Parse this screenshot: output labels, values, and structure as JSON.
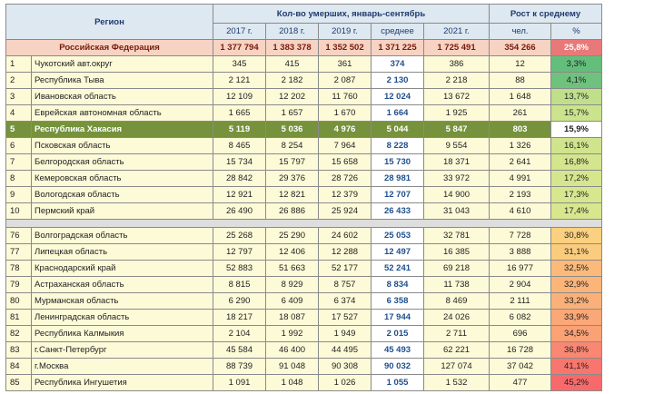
{
  "header": {
    "region": "Регион",
    "deaths_group": "Кол-во умерших, январь-сентябрь",
    "growth_group": "Рост к среднему",
    "years": [
      "2017 г.",
      "2018 г.",
      "2019 г."
    ],
    "avg": "среднее",
    "y2021": "2021 г.",
    "people": "чел.",
    "percent": "%"
  },
  "russia": {
    "name": "Российская Федерация",
    "v2017": "1 377 794",
    "v2018": "1 383 378",
    "v2019": "1 352 502",
    "avg": "1 371 225",
    "v2021": "1 725 491",
    "people": "354 266",
    "pct": "25,8%"
  },
  "top_rows": [
    {
      "rank": "1",
      "region": "Чукотский авт.округ",
      "v2017": "345",
      "v2018": "415",
      "v2019": "361",
      "avg": "374",
      "v2021": "386",
      "people": "12",
      "pct": "3,3%",
      "pct_color": "#63be7b"
    },
    {
      "rank": "2",
      "region": "Республика Тыва",
      "v2017": "2 121",
      "v2018": "2 182",
      "v2019": "2 087",
      "avg": "2 130",
      "v2021": "2 218",
      "people": "88",
      "pct": "4,1%",
      "pct_color": "#6ec27d"
    },
    {
      "rank": "3",
      "region": "Ивановская область",
      "v2017": "12 109",
      "v2018": "12 202",
      "v2019": "11 760",
      "avg": "12 024",
      "v2021": "13 672",
      "people": "1 648",
      "pct": "13,7%",
      "pct_color": "#bfdf8a"
    },
    {
      "rank": "4",
      "region": "Еврейская автономная область",
      "v2017": "1 665",
      "v2018": "1 657",
      "v2019": "1 670",
      "avg": "1 664",
      "v2021": "1 925",
      "people": "261",
      "pct": "15,7%",
      "pct_color": "#cbe38c"
    },
    {
      "rank": "5",
      "region": "Республика Хакасия",
      "v2017": "5 119",
      "v2018": "5 036",
      "v2019": "4 976",
      "avg": "5 044",
      "v2021": "5 847",
      "people": "803",
      "pct": "15,9%",
      "pct_color": "#ffffff",
      "highlight": true
    },
    {
      "rank": "6",
      "region": "Псковская область",
      "v2017": "8 465",
      "v2018": "8 254",
      "v2019": "7 964",
      "avg": "8 228",
      "v2021": "9 554",
      "people": "1 326",
      "pct": "16,1%",
      "pct_color": "#cfe48d"
    },
    {
      "rank": "7",
      "region": "Белгородская область",
      "v2017": "15 734",
      "v2018": "15 797",
      "v2019": "15 658",
      "avg": "15 730",
      "v2021": "18 371",
      "people": "2 641",
      "pct": "16,8%",
      "pct_color": "#d3e58d"
    },
    {
      "rank": "8",
      "region": "Кемеровская область",
      "v2017": "28 842",
      "v2018": "29 376",
      "v2019": "28 726",
      "avg": "28 981",
      "v2021": "33 972",
      "people": "4 991",
      "pct": "17,2%",
      "pct_color": "#d6e68e"
    },
    {
      "rank": "9",
      "region": "Вологодская область",
      "v2017": "12 921",
      "v2018": "12 821",
      "v2019": "12 379",
      "avg": "12 707",
      "v2021": "14 900",
      "people": "2 193",
      "pct": "17,3%",
      "pct_color": "#d7e78e"
    },
    {
      "rank": "10",
      "region": "Пермский край",
      "v2017": "26 490",
      "v2018": "26 886",
      "v2019": "25 924",
      "avg": "26 433",
      "v2021": "31 043",
      "people": "4 610",
      "pct": "17,4%",
      "pct_color": "#d8e78e"
    }
  ],
  "bottom_rows": [
    {
      "rank": "76",
      "region": "Волгоградская область",
      "v2017": "25 268",
      "v2018": "25 290",
      "v2019": "24 602",
      "avg": "25 053",
      "v2021": "32 781",
      "people": "7 728",
      "pct": "30,8%",
      "pct_color": "#fbd07f"
    },
    {
      "rank": "77",
      "region": "Липецкая область",
      "v2017": "12 797",
      "v2018": "12 406",
      "v2019": "12 288",
      "avg": "12 497",
      "v2021": "16 385",
      "people": "3 888",
      "pct": "31,1%",
      "pct_color": "#fbcc7e"
    },
    {
      "rank": "78",
      "region": "Краснодарский край",
      "v2017": "52 883",
      "v2018": "51 663",
      "v2019": "52 177",
      "avg": "52 241",
      "v2021": "69 218",
      "people": "16 977",
      "pct": "32,5%",
      "pct_color": "#fbba7a"
    },
    {
      "rank": "79",
      "region": "Астраханская область",
      "v2017": "8 815",
      "v2018": "8 929",
      "v2019": "8 757",
      "avg": "8 834",
      "v2021": "11 738",
      "people": "2 904",
      "pct": "32,9%",
      "pct_color": "#fbb579"
    },
    {
      "rank": "80",
      "region": "Мурманская область",
      "v2017": "6 290",
      "v2018": "6 409",
      "v2019": "6 374",
      "avg": "6 358",
      "v2021": "8 469",
      "people": "2 111",
      "pct": "33,2%",
      "pct_color": "#fab179"
    },
    {
      "rank": "81",
      "region": "Ленинградская область",
      "v2017": "18 217",
      "v2018": "18 087",
      "v2019": "17 527",
      "avg": "17 944",
      "v2021": "24 026",
      "people": "6 082",
      "pct": "33,9%",
      "pct_color": "#faa877"
    },
    {
      "rank": "82",
      "region": "Республика Калмыкия",
      "v2017": "2 104",
      "v2018": "1 992",
      "v2019": "1 949",
      "avg": "2 015",
      "v2021": "2 711",
      "people": "696",
      "pct": "34,5%",
      "pct_color": "#faa176"
    },
    {
      "rank": "83",
      "region": "г.Санкт-Петербург",
      "v2017": "45 584",
      "v2018": "46 400",
      "v2019": "44 495",
      "avg": "45 493",
      "v2021": "62 221",
      "people": "16 728",
      "pct": "36,8%",
      "pct_color": "#f98773"
    },
    {
      "rank": "84",
      "region": "г.Москва",
      "v2017": "88 739",
      "v2018": "91 048",
      "v2019": "90 308",
      "avg": "90 032",
      "v2021": "127 074",
      "people": "37 042",
      "pct": "41,1%",
      "pct_color": "#f8766d"
    },
    {
      "rank": "85",
      "region": "Республика Ингушетия",
      "v2017": "1 091",
      "v2018": "1 048",
      "v2019": "1 026",
      "avg": "1 055",
      "v2021": "1 532",
      "people": "477",
      "pct": "45,2%",
      "pct_color": "#f8696b"
    }
  ]
}
